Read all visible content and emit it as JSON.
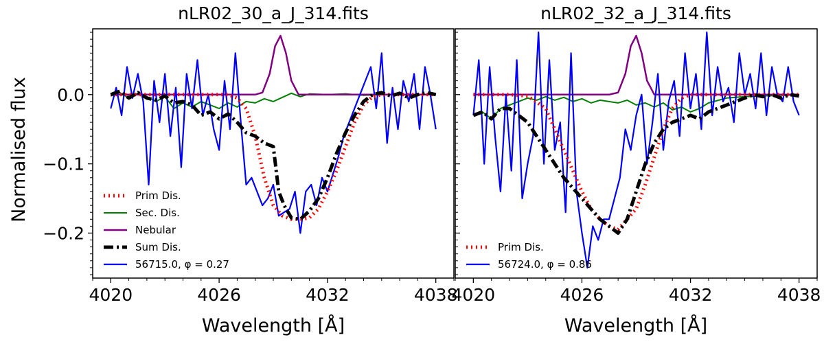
{
  "figure": {
    "ylabel": "Normalised flux",
    "xlabel": "Wavelength [Å]",
    "colors": {
      "prim": "#ff0000",
      "sec": "#008000",
      "nebular": "#800080",
      "sum": "#000000",
      "obs": "#0000ff"
    }
  },
  "chart_data": [
    {
      "type": "line",
      "title": "nLR02_30_a_J_314.fits",
      "xlabel": "Wavelength [Å]",
      "ylabel": "Normalised flux",
      "xlim": [
        4019,
        4039
      ],
      "ylim": [
        -0.265,
        0.095
      ],
      "xticks": [
        4020,
        4026,
        4032,
        4038
      ],
      "yticks": [
        0.0,
        -0.1,
        -0.2
      ],
      "ytick_labels": [
        "0.0",
        "−0.1",
        "−0.2"
      ],
      "legend_position": "lower-left",
      "series": [
        {
          "key": "prim",
          "name": "Prim Dis.",
          "style": "dotted",
          "x": [
            4020.0,
            4021.0,
            4022.0,
            4023.0,
            4024.0,
            4025.0,
            4026.0,
            4026.5,
            4027.0,
            4027.5,
            4028.0,
            4028.5,
            4029.0,
            4029.5,
            4030.0,
            4030.5,
            4031.0,
            4031.5,
            4032.0,
            4032.5,
            4033.0,
            4033.5,
            4034.0,
            4034.5,
            4035.0,
            4036.0,
            4037.0,
            4038.0
          ],
          "y": [
            0.0,
            0.0,
            0.0,
            0.0,
            0.0,
            0.0,
            0.0,
            0.0,
            -0.005,
            -0.02,
            -0.06,
            -0.12,
            -0.16,
            -0.175,
            -0.18,
            -0.18,
            -0.178,
            -0.165,
            -0.14,
            -0.11,
            -0.075,
            -0.04,
            -0.015,
            -0.003,
            0.0,
            0.0,
            0.0,
            0.0
          ]
        },
        {
          "key": "sec",
          "name": "Sec. Dis.",
          "style": "solid",
          "x": [
            4020.0,
            4020.5,
            4021.0,
            4021.5,
            4022.0,
            4022.5,
            4023.0,
            4023.5,
            4024.0,
            4024.5,
            4025.0,
            4025.5,
            4026.0,
            4026.5,
            4027.0,
            4027.5,
            4028.0,
            4028.5,
            4029.0,
            4029.5,
            4030.0,
            4030.5,
            4031.0,
            4032.0,
            4033.0,
            4034.0,
            4035.0,
            4036.0,
            4037.0,
            4038.0
          ],
          "y": [
            -0.002,
            0.003,
            -0.005,
            0.002,
            -0.003,
            -0.01,
            -0.003,
            -0.02,
            -0.012,
            -0.018,
            -0.01,
            -0.015,
            -0.02,
            -0.012,
            -0.018,
            -0.01,
            -0.012,
            -0.006,
            -0.01,
            -0.004,
            0.002,
            -0.003,
            0.001,
            0.0,
            0.001,
            -0.001,
            0.0,
            0.0,
            0.0,
            0.0
          ]
        },
        {
          "key": "nebular",
          "name": "Nebular",
          "style": "solid",
          "x": [
            4020.0,
            4028.0,
            4028.4,
            4028.8,
            4029.1,
            4029.4,
            4029.7,
            4030.0,
            4030.4,
            4032.0,
            4036.0,
            4038.0
          ],
          "y": [
            0.0,
            0.0,
            0.003,
            0.03,
            0.07,
            0.085,
            0.06,
            0.02,
            0.0,
            0.0,
            0.0,
            0.0
          ]
        },
        {
          "key": "sum",
          "name": "Sum Dis.",
          "style": "dashdot",
          "x": [
            4020.0,
            4020.5,
            4021.0,
            4021.5,
            4022.0,
            4022.5,
            4023.0,
            4023.5,
            4024.0,
            4024.5,
            4025.0,
            4025.5,
            4026.0,
            4026.5,
            4027.0,
            4027.5,
            4028.0,
            4028.5,
            4029.0,
            4029.3,
            4029.6,
            4030.0,
            4030.5,
            4031.0,
            4031.5,
            4032.0,
            4032.5,
            4033.0,
            4033.5,
            4034.0,
            4034.5,
            4035.0,
            4035.5,
            4036.0,
            4036.5,
            4037.0,
            4037.5,
            4038.0
          ],
          "y": [
            0.0,
            0.005,
            -0.005,
            0.003,
            -0.005,
            -0.008,
            -0.002,
            -0.012,
            -0.01,
            -0.015,
            -0.03,
            -0.025,
            -0.035,
            -0.028,
            -0.04,
            -0.055,
            -0.06,
            -0.07,
            -0.075,
            -0.14,
            -0.16,
            -0.178,
            -0.18,
            -0.168,
            -0.15,
            -0.12,
            -0.085,
            -0.055,
            -0.03,
            -0.01,
            0.0,
            0.003,
            -0.002,
            0.002,
            -0.005,
            0.0,
            0.003,
            0.0
          ]
        },
        {
          "key": "obs",
          "name": "56715.0, φ = 0.27",
          "style": "solid",
          "x": [
            4020.0,
            4020.3,
            4020.6,
            4020.9,
            4021.2,
            4021.5,
            4021.8,
            4022.1,
            4022.4,
            4022.7,
            4023.0,
            4023.3,
            4023.6,
            4023.9,
            4024.2,
            4024.5,
            4024.8,
            4025.1,
            4025.4,
            4025.7,
            4026.0,
            4026.3,
            4026.6,
            4026.9,
            4027.2,
            4027.5,
            4027.8,
            4028.1,
            4028.4,
            4028.7,
            4029.0,
            4029.3,
            4029.6,
            4029.9,
            4030.2,
            4030.5,
            4030.8,
            4031.1,
            4031.4,
            4031.7,
            4032.0,
            4032.3,
            4032.6,
            4032.9,
            4033.2,
            4033.5,
            4033.8,
            4034.1,
            4034.4,
            4034.7,
            4035.0,
            4035.3,
            4035.6,
            4035.9,
            4036.2,
            4036.5,
            4036.8,
            4037.1,
            4037.4,
            4037.7,
            4038.0
          ],
          "y": [
            -0.02,
            0.01,
            -0.03,
            0.04,
            -0.005,
            0.03,
            -0.01,
            -0.13,
            0.02,
            -0.04,
            0.03,
            -0.06,
            0.01,
            -0.105,
            0.03,
            -0.02,
            0.05,
            -0.03,
            0.0,
            -0.05,
            -0.08,
            0.02,
            -0.05,
            0.06,
            -0.04,
            -0.13,
            -0.12,
            -0.14,
            -0.16,
            -0.15,
            -0.13,
            -0.175,
            -0.17,
            -0.165,
            -0.14,
            -0.2,
            -0.14,
            -0.13,
            -0.16,
            -0.12,
            -0.14,
            -0.115,
            -0.09,
            -0.06,
            -0.04,
            -0.02,
            0.0,
            0.02,
            0.04,
            -0.02,
            0.06,
            -0.07,
            0.01,
            -0.05,
            0.02,
            -0.01,
            0.03,
            -0.05,
            0.04,
            0.0,
            -0.05
          ]
        }
      ]
    },
    {
      "type": "line",
      "title": "nLR02_32_a_J_314.fits",
      "xlabel": "Wavelength [Å]",
      "ylabel": "",
      "xlim": [
        4019,
        4039
      ],
      "ylim": [
        -0.265,
        0.095
      ],
      "xticks": [
        4020,
        4026,
        4032,
        4038
      ],
      "yticks": [
        0.0,
        -0.1,
        -0.2
      ],
      "legend_position": "lower-left",
      "series": [
        {
          "key": "prim",
          "name": "Prim Dis.",
          "style": "dotted",
          "x": [
            4020.0,
            4021.0,
            4022.0,
            4023.0,
            4024.0,
            4024.5,
            4025.0,
            4025.5,
            4026.0,
            4026.5,
            4027.0,
            4027.5,
            4028.0,
            4028.5,
            4029.0,
            4029.5,
            4030.0,
            4030.5,
            4031.0,
            4031.5,
            4032.0,
            4033.0,
            4034.0,
            4035.0,
            4036.0,
            4037.0,
            4038.0
          ],
          "y": [
            0.0,
            0.0,
            0.0,
            -0.002,
            -0.02,
            -0.05,
            -0.08,
            -0.11,
            -0.14,
            -0.165,
            -0.18,
            -0.19,
            -0.195,
            -0.18,
            -0.165,
            -0.13,
            -0.09,
            -0.05,
            -0.02,
            -0.005,
            0.0,
            0.0,
            0.0,
            0.0,
            0.0,
            0.0,
            0.0
          ]
        },
        {
          "key": "sec",
          "name": "Sec. Dis.",
          "style": "solid",
          "in_legend": false,
          "x": [
            4020.0,
            4020.5,
            4021.0,
            4021.5,
            4022.0,
            4022.5,
            4023.0,
            4023.5,
            4024.0,
            4024.5,
            4025.0,
            4025.5,
            4026.0,
            4026.5,
            4027.0,
            4027.5,
            4028.0,
            4028.5,
            4029.0,
            4029.5,
            4030.0,
            4030.5,
            4031.0,
            4031.5,
            4032.0,
            4032.5,
            4033.0,
            4034.0,
            4035.0,
            4036.0,
            4037.0,
            4038.0
          ],
          "y": [
            -0.03,
            -0.025,
            -0.035,
            -0.02,
            -0.015,
            -0.01,
            -0.005,
            -0.008,
            -0.003,
            -0.008,
            -0.004,
            -0.01,
            -0.006,
            -0.012,
            -0.008,
            -0.01,
            -0.012,
            -0.008,
            -0.015,
            -0.012,
            -0.018,
            -0.012,
            -0.022,
            -0.018,
            -0.025,
            -0.02,
            -0.012,
            -0.005,
            -0.003,
            -0.002,
            -0.001,
            0.0
          ]
        },
        {
          "key": "nebular",
          "name": "Nebular",
          "style": "solid",
          "in_legend": false,
          "x": [
            4020.0,
            4027.5,
            4028.0,
            4028.4,
            4028.7,
            4029.0,
            4029.3,
            4029.6,
            4030.0,
            4032.0,
            4036.0,
            4038.0
          ],
          "y": [
            0.0,
            0.0,
            0.003,
            0.03,
            0.07,
            0.085,
            0.06,
            0.02,
            0.0,
            0.0,
            0.0,
            0.0
          ]
        },
        {
          "key": "sum",
          "name": "Sum Dis.",
          "style": "dashdot",
          "in_legend": false,
          "x": [
            4020.0,
            4020.5,
            4021.0,
            4021.5,
            4022.0,
            4022.5,
            4023.0,
            4023.5,
            4024.0,
            4024.5,
            4025.0,
            4025.5,
            4026.0,
            4026.5,
            4027.0,
            4027.5,
            4028.0,
            4028.5,
            4029.0,
            4029.5,
            4030.0,
            4030.5,
            4031.0,
            4031.5,
            4032.0,
            4032.5,
            4033.0,
            4033.5,
            4034.0,
            4034.5,
            4035.0,
            4035.5,
            4036.0,
            4036.5,
            4037.0,
            4037.5,
            4038.0
          ],
          "y": [
            -0.03,
            -0.025,
            -0.035,
            -0.02,
            -0.02,
            -0.03,
            -0.04,
            -0.06,
            -0.08,
            -0.1,
            -0.12,
            -0.135,
            -0.15,
            -0.165,
            -0.18,
            -0.19,
            -0.2,
            -0.18,
            -0.14,
            -0.1,
            -0.07,
            -0.05,
            -0.04,
            -0.035,
            -0.03,
            -0.035,
            -0.025,
            -0.02,
            -0.015,
            -0.01,
            -0.005,
            0.0,
            -0.003,
            0.0,
            -0.005,
            0.0,
            -0.002
          ]
        },
        {
          "key": "obs",
          "name": "56724.0, φ = 0.86",
          "style": "solid",
          "x": [
            4020.0,
            4020.3,
            4020.6,
            4020.9,
            4021.2,
            4021.5,
            4021.8,
            4022.1,
            4022.4,
            4022.7,
            4023.0,
            4023.3,
            4023.6,
            4023.9,
            4024.2,
            4024.5,
            4024.8,
            4025.1,
            4025.4,
            4025.7,
            4026.0,
            4026.3,
            4026.6,
            4026.9,
            4027.2,
            4027.5,
            4027.8,
            4028.1,
            4028.4,
            4028.7,
            4029.0,
            4029.3,
            4029.6,
            4029.9,
            4030.2,
            4030.5,
            4030.8,
            4031.1,
            4031.4,
            4031.7,
            4032.0,
            4032.3,
            4032.6,
            4032.9,
            4033.2,
            4033.5,
            4033.8,
            4034.1,
            4034.4,
            4034.7,
            4035.0,
            4035.3,
            4035.6,
            4035.9,
            4036.2,
            4036.5,
            4036.8,
            4037.1,
            4037.4,
            4037.7,
            4038.0
          ],
          "y": [
            -0.03,
            0.05,
            -0.1,
            0.04,
            -0.06,
            -0.14,
            0.0,
            -0.11,
            0.05,
            -0.15,
            -0.1,
            -0.06,
            0.09,
            -0.1,
            0.05,
            -0.08,
            -0.04,
            -0.17,
            0.06,
            -0.14,
            -0.2,
            -0.25,
            -0.19,
            -0.21,
            -0.18,
            -0.18,
            -0.15,
            -0.12,
            -0.05,
            -0.08,
            -0.03,
            0.0,
            -0.1,
            -0.04,
            0.03,
            -0.08,
            -0.01,
            0.02,
            -0.06,
            0.06,
            -0.02,
            0.03,
            -0.05,
            0.09,
            -0.03,
            0.04,
            -0.01,
            0.01,
            -0.04,
            0.06,
            0.0,
            0.03,
            -0.02,
            0.06,
            -0.03,
            0.04,
            0.0,
            -0.01,
            0.04,
            -0.01,
            -0.03
          ]
        }
      ]
    }
  ]
}
